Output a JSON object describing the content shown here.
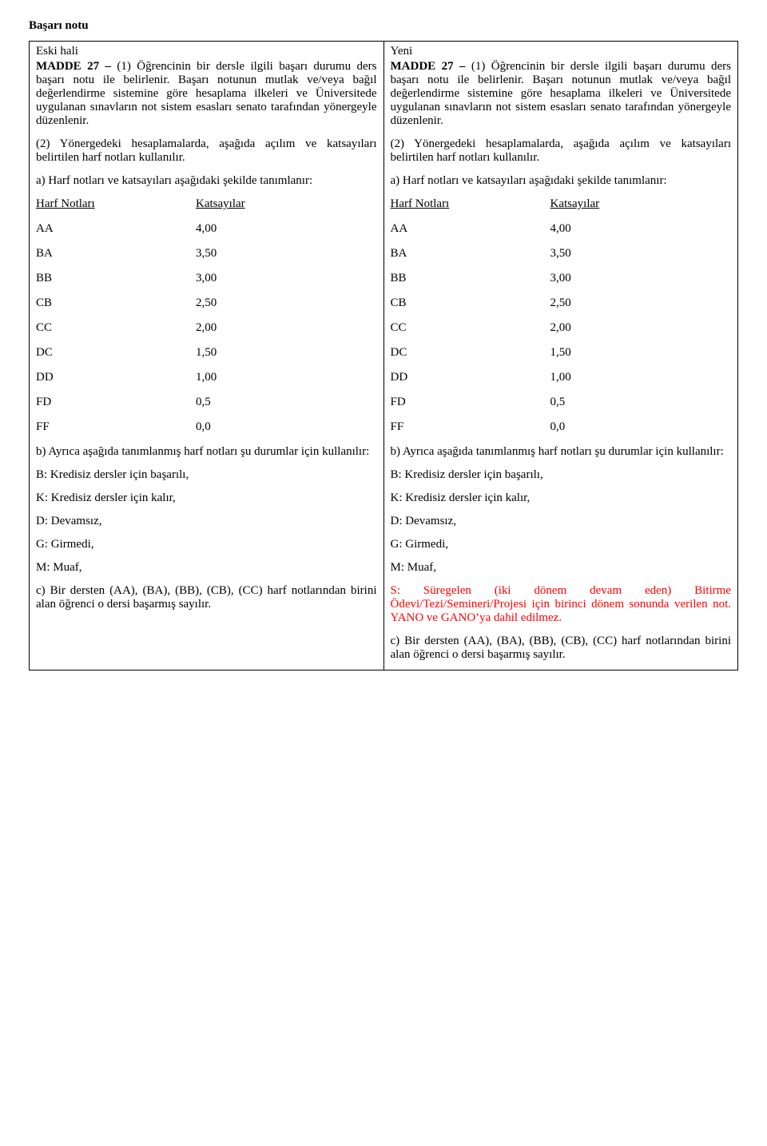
{
  "title": "Başarı notu",
  "left": {
    "header": "Eski hali",
    "madde_bold": "MADDE 27 – ",
    "p1": "(1) Öğrencinin bir dersle ilgili başarı durumu ders başarı notu ile belirlenir. Başarı notunun mutlak ve/veya bağıl değerlendirme sistemine göre hesaplama ilkeleri ve Üniversitede uygulanan sınavların not sistem esasları senato tarafından yönergeyle düzenlenir.",
    "p2": "(2) Yönergedeki hesaplamalarda, aşağıda açılım ve katsayıları belirtilen harf notları kullanılır.",
    "p3": "a) Harf notları ve katsayıları aşağıdaki şekilde tanımlanır:",
    "grade_header_a": "Harf Notları",
    "grade_header_b": "Katsayılar",
    "grades": [
      {
        "a": "AA",
        "b": "4,00"
      },
      {
        "a": "BA",
        "b": "3,50"
      },
      {
        "a": "BB",
        "b": "3,00"
      },
      {
        "a": "CB",
        "b": "2,50"
      },
      {
        "a": "CC",
        "b": "2,00"
      },
      {
        "a": "DC",
        "b": "1,50"
      },
      {
        "a": "DD",
        "b": "1,00"
      },
      {
        "a": "FD",
        "b": "0,5"
      },
      {
        "a": "FF",
        "b": "0,0"
      }
    ],
    "p4": "b) Ayrıca aşağıda tanımlanmış harf notları şu durumlar için kullanılır:",
    "l1": "B: Kredisiz dersler için başarılı,",
    "l2": "K: Kredisiz dersler için kalır,",
    "l3": "D: Devamsız,",
    "l4": "G: Girmedi,",
    "l5": "M: Muaf,",
    "p5": "c) Bir dersten (AA), (BA), (BB), (CB), (CC) harf notlarından birini alan öğrenci o dersi başarmış sayılır."
  },
  "right": {
    "header": "Yeni",
    "madde_bold": "MADDE 27 – ",
    "p1": "(1) Öğrencinin bir dersle ilgili başarı durumu ders başarı notu ile belirlenir. Başarı notunun mutlak ve/veya bağıl değerlendirme sistemine göre hesaplama ilkeleri ve Üniversitede uygulanan sınavların not sistem esasları senato tarafından yönergeyle düzenlenir.",
    "p2": "(2) Yönergedeki hesaplamalarda, aşağıda açılım ve katsayıları belirtilen harf notları kullanılır.",
    "p3": "a) Harf notları ve katsayıları aşağıdaki şekilde tanımlanır:",
    "grade_header_a": "Harf Notları",
    "grade_header_b": "Katsayılar",
    "grades": [
      {
        "a": "AA",
        "b": "4,00"
      },
      {
        "a": "BA",
        "b": "3,50"
      },
      {
        "a": "BB",
        "b": "3,00"
      },
      {
        "a": "CB",
        "b": "2,50"
      },
      {
        "a": "CC",
        "b": "2,00"
      },
      {
        "a": "DC",
        "b": "1,50"
      },
      {
        "a": "DD",
        "b": "1,00"
      },
      {
        "a": "FD",
        "b": "0,5"
      },
      {
        "a": "FF",
        "b": "0,0"
      }
    ],
    "p4": "b) Ayrıca aşağıda tanımlanmış harf notları şu durumlar için kullanılır:",
    "l1": "B: Kredisiz dersler için başarılı,",
    "l2": "K: Kredisiz dersler için kalır,",
    "l3": "D: Devamsız,",
    "l4": "G: Girmedi,",
    "l5": "M: Muaf,",
    "l6": "S: Süregelen (iki dönem devam eden) Bitirme Ödevi/Tezi/Semineri/Projesi için birinci dönem sonunda verilen not. YANO ve GANO’ya dahil edilmez.",
    "p5": "c) Bir dersten (AA), (BA), (BB), (CB), (CC) harf notlarından birini alan öğrenci o dersi başarmış sayılır."
  },
  "colors": {
    "text": "#000000",
    "red": "#ff0000",
    "border": "#000000",
    "background": "#ffffff"
  }
}
